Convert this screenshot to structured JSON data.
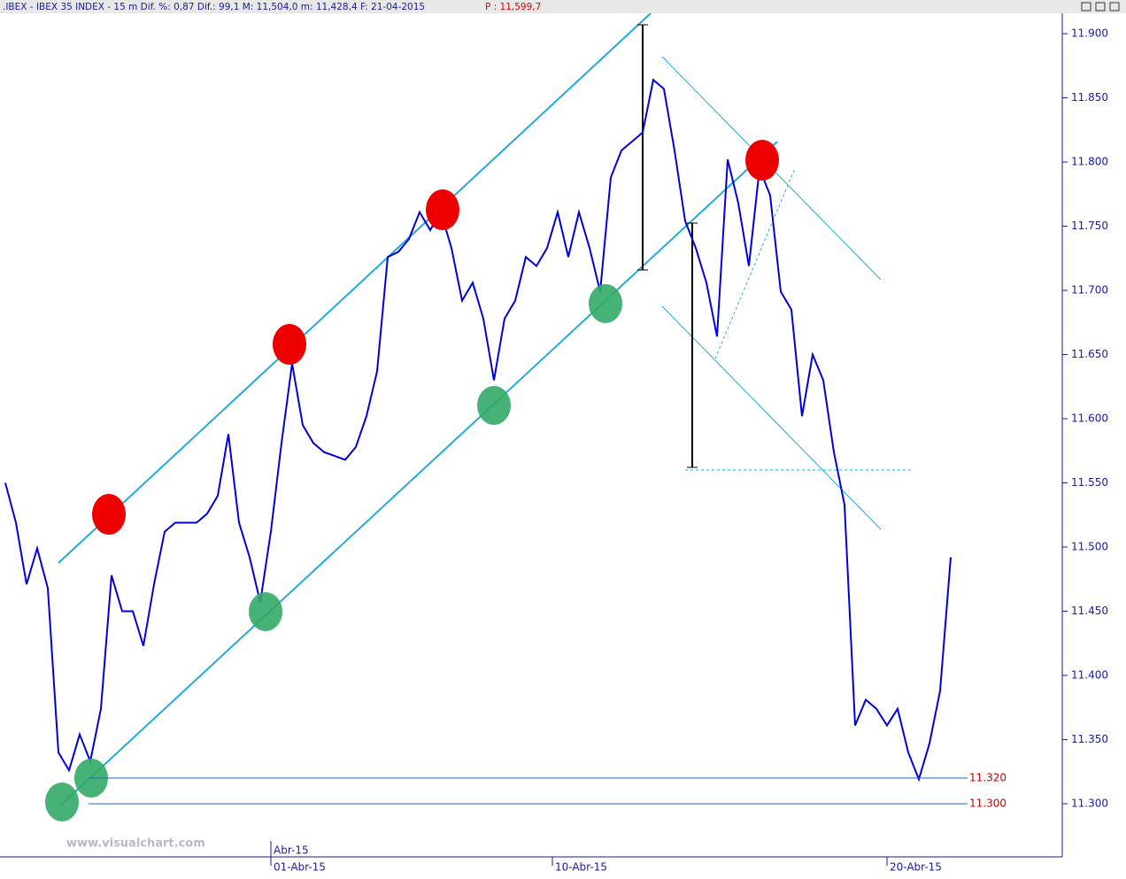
{
  "chart_data": {
    "type": "line",
    "title": ".IBEX - IBEX 35 INDEX -  15 m Dif. %: 0,87 Dif.: 99,1 M: 11,504,0 m: 11,428,4 F: 21-04-2015",
    "price": "P : 11,599,7",
    "watermark": "www.visualchart.com",
    "color": "#0000dd",
    "values": [
      11550,
      11519,
      11471,
      11499,
      11468,
      11340,
      11326,
      11354,
      11333,
      11374,
      11478,
      11450,
      11450,
      11423,
      11471,
      11512,
      11519,
      11519,
      11519,
      11526,
      11540,
      11588,
      11519,
      11492,
      11457,
      11512,
      11581,
      11643,
      11595,
      11581,
      11574,
      11571,
      11568,
      11578,
      11602,
      11637,
      11726,
      11730,
      11740,
      11761,
      11747,
      11761,
      11733,
      11692,
      11706,
      11678,
      11630,
      11678,
      11692,
      11726,
      11719,
      11733,
      11761,
      11726,
      11761,
      11733,
      11699,
      11788,
      11809,
      11816,
      11823,
      11864,
      11857,
      11809,
      11754,
      11733,
      11706,
      11664,
      11802,
      11768,
      11719,
      11795,
      11774,
      11699,
      11685,
      11602,
      11650,
      11630,
      11574,
      11533,
      11361,
      11381,
      11374,
      11361,
      11374,
      11340,
      11319,
      11347,
      11388,
      11492
    ],
    "xlim": [
      -0.5,
      99.5
    ],
    "xticks": [
      {
        "value": 25,
        "label": "01-Abr-15"
      },
      {
        "value": 51.5,
        "label": "10-Abr-15"
      },
      {
        "value": 83,
        "label": "20-Abr-15"
      }
    ],
    "month_tick": {
      "value": 25,
      "label": "Abr-15"
    },
    "ylim": [
      11258.6,
      11915.9
    ],
    "yticks": [
      {
        "value": 11300,
        "label": "11.300"
      },
      {
        "value": 11350,
        "label": "11.350"
      },
      {
        "value": 11400,
        "label": "11.400"
      },
      {
        "value": 11450,
        "label": "11.450"
      },
      {
        "value": 11500,
        "label": "11.500"
      },
      {
        "value": 11550,
        "label": "11.550"
      },
      {
        "value": 11600,
        "label": "11.600"
      },
      {
        "value": 11650,
        "label": "11.650"
      },
      {
        "value": 11700,
        "label": "11.700"
      },
      {
        "value": 11750,
        "label": "11.750"
      },
      {
        "value": 11800,
        "label": "11.800"
      },
      {
        "value": 11850,
        "label": "11.850"
      },
      {
        "value": 11900,
        "label": "11.900"
      }
    ],
    "levels": [
      {
        "value": 11320,
        "label": "11.320"
      },
      {
        "value": 11300,
        "label": "11.300"
      }
    ],
    "level_color": "#cc0000"
  }
}
